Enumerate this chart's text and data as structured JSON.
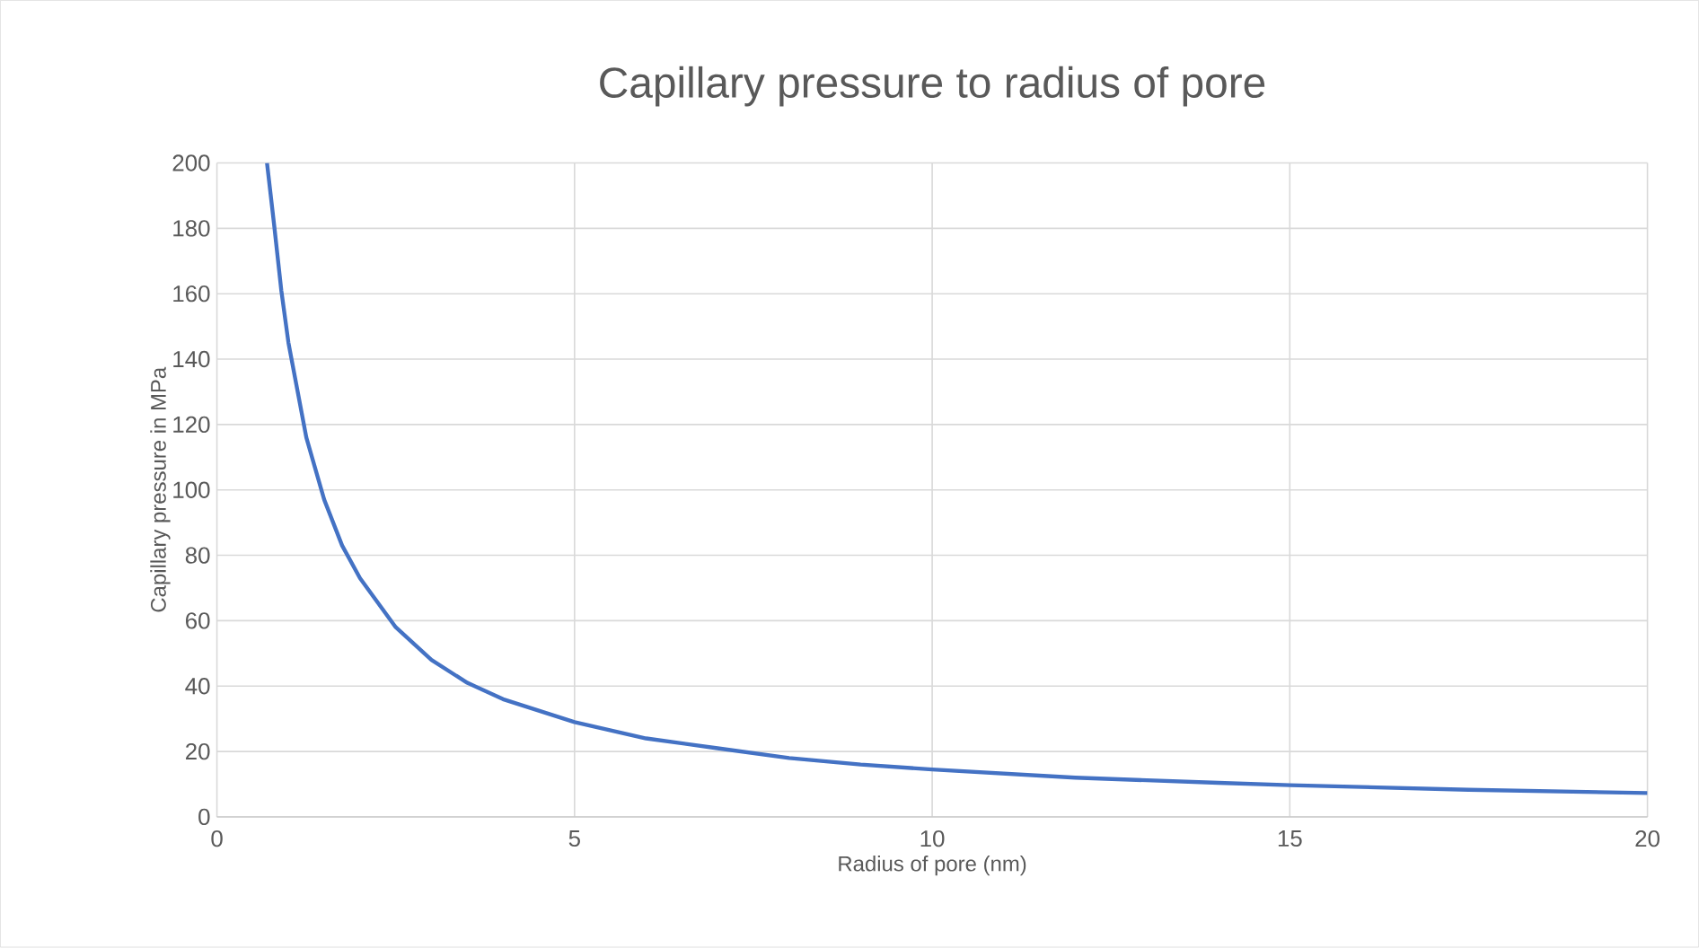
{
  "chart_data": {
    "type": "line",
    "title": "Capillary pressure to radius of pore",
    "xlabel": "Radius of pore (nm)",
    "ylabel": "Capillary pressure in MPa",
    "x": [
      0.7,
      0.8,
      0.9,
      1,
      1.25,
      1.5,
      1.75,
      2,
      2.5,
      3,
      3.5,
      4,
      5,
      6,
      7,
      8,
      9,
      10,
      12,
      14,
      15,
      17.5,
      20
    ],
    "series": [
      {
        "color": "#4472c4",
        "values": [
          200,
          181,
          161,
          145,
          116,
          97,
          83,
          73,
          58,
          48,
          41,
          36,
          29,
          24,
          21,
          18,
          16,
          14.5,
          12,
          10.4,
          9.7,
          8.3,
          7.3
        ]
      }
    ],
    "xlim": [
      0,
      20
    ],
    "xticks": [
      0,
      5,
      10,
      15,
      20
    ],
    "ylim": [
      0,
      200
    ],
    "yticks": [
      0,
      20,
      40,
      60,
      80,
      100,
      120,
      140,
      160,
      180,
      200
    ],
    "grid": true,
    "marker": "none",
    "line_style": "solid",
    "legend": false
  }
}
